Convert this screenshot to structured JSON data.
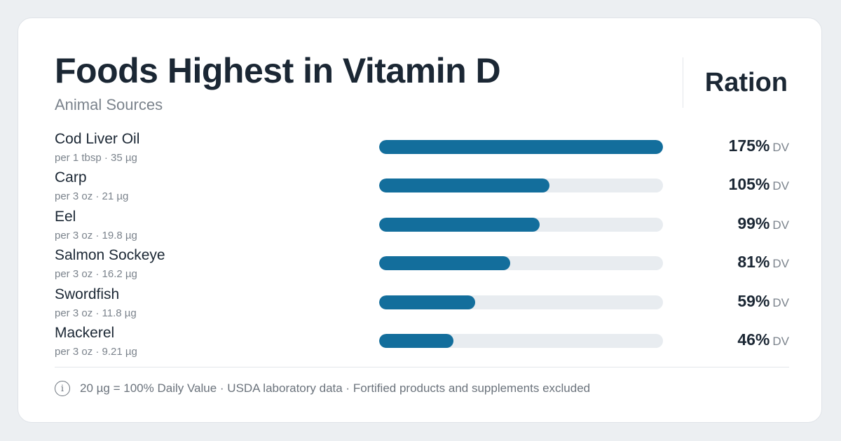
{
  "header": {
    "title": "Foods Highest in Vitamin D",
    "subtitle": "Animal Sources",
    "brand": "Ration"
  },
  "footer": {
    "note": "20 µg = 100% Daily Value · USDA laboratory data · Fortified products and supplements excluded",
    "icon": "info-icon"
  },
  "colors": {
    "bar_fill": "#136e9c",
    "bar_track": "#e8ecf0",
    "text_primary": "#1b2734",
    "text_secondary": "#7b838c",
    "background": "#eceff2"
  },
  "chart_data": {
    "type": "bar",
    "orientation": "horizontal",
    "title": "Foods Highest in Vitamin D",
    "subtitle": "Animal Sources",
    "xlim": [
      0,
      175
    ],
    "grid": false,
    "categories": [
      "Cod Liver Oil",
      "Carp",
      "Eel",
      "Salmon Sockeye",
      "Swordfish",
      "Mackerel"
    ],
    "details": [
      "per 1 tbsp · 35 µg",
      "per 3 oz · 21 µg",
      "per 3 oz · 19.8 µg",
      "per 3 oz · 16.2 µg",
      "per 3 oz · 11.8 µg",
      "per 3 oz · 9.21 µg"
    ],
    "values": [
      175,
      105,
      99,
      81,
      59,
      46
    ],
    "value_labels": [
      "175%",
      "105%",
      "99%",
      "81%",
      "59%",
      "46%"
    ],
    "value_unit": "DV"
  }
}
